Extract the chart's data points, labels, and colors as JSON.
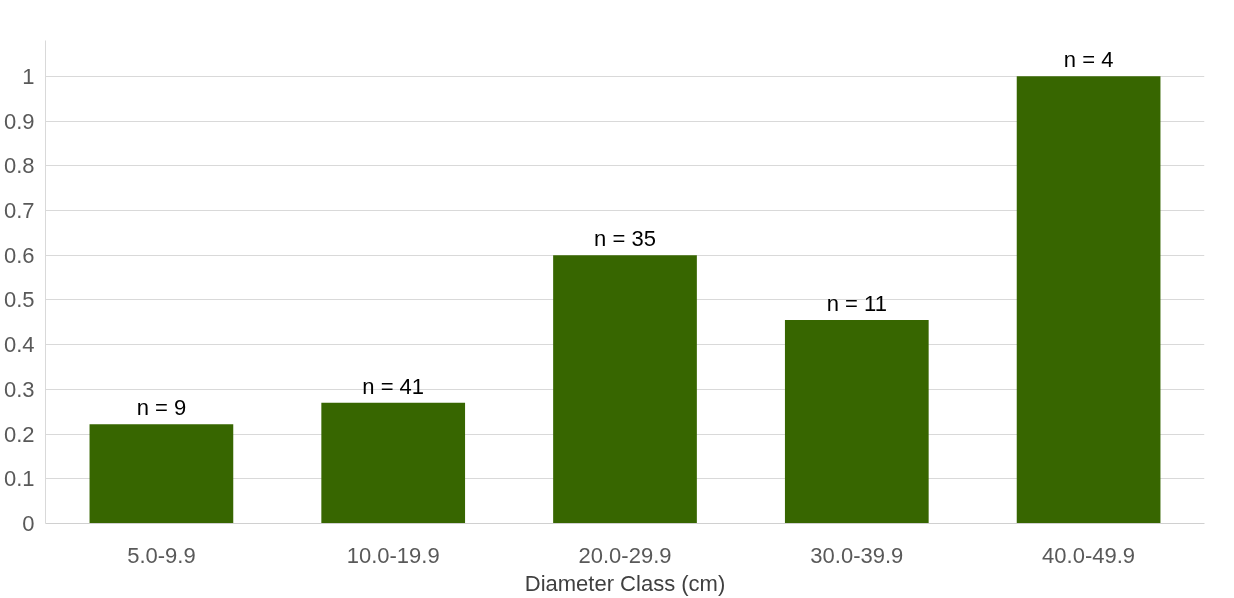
{
  "chart_data": {
    "type": "bar",
    "xlabel": "Diameter Class (cm)",
    "categories": [
      "5.0-9.9",
      "10.0-19.9",
      "20.0-29.9",
      "30.0-39.9",
      "40.0-49.9"
    ],
    "values": [
      0.222,
      0.27,
      0.6,
      0.455,
      1.0
    ],
    "color": "#376600",
    "ylim": [
      0,
      1.08
    ],
    "yticks": [
      0,
      0.1,
      0.2,
      0.3,
      0.4,
      0.5,
      0.6,
      0.7,
      0.8,
      0.9,
      1
    ],
    "grid": "y",
    "annotations": [
      {
        "text": "n = 9",
        "x": "5.0-9.9",
        "y": 0.222
      },
      {
        "text": "n = 41",
        "x": "10.0-19.9",
        "y": 0.27
      },
      {
        "text": "n = 35",
        "x": "20.0-29.9",
        "y": 0.6
      },
      {
        "text": "n = 11",
        "x": "30.0-39.9",
        "y": 0.455
      },
      {
        "text": "n = 4",
        "x": "40.0-49.9",
        "y": 1.0
      }
    ]
  }
}
